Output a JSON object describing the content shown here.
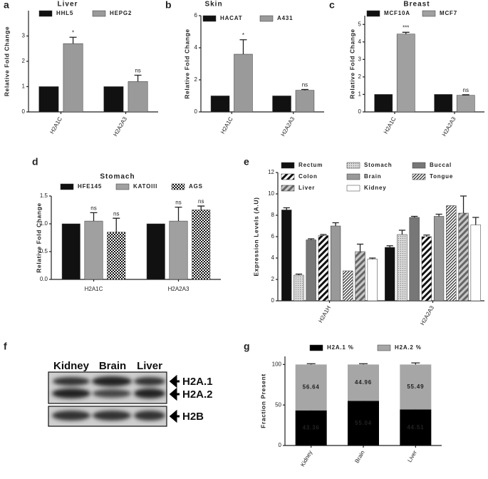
{
  "chart_data": [
    {
      "label": "a",
      "type": "bar",
      "title": "Liver",
      "ylabel": "Relative Fold Change",
      "categories": [
        "H2A1C",
        "H2A2A3"
      ],
      "ylim": [
        0,
        4
      ],
      "yticks": [
        0,
        1,
        2,
        3
      ],
      "series": [
        {
          "name": "HHL5",
          "color": "#111111",
          "values": [
            1,
            1
          ]
        },
        {
          "name": "HEPG2",
          "color": "#9a9a9a",
          "values": [
            2.7,
            1.2
          ],
          "errors": [
            0.25,
            0.25
          ],
          "annotations": [
            "*",
            "ns"
          ]
        }
      ]
    },
    {
      "label": "b",
      "type": "bar",
      "title": "Skin",
      "ylabel": "Relative Fold Change",
      "categories": [
        "H2A1C",
        "H2A2A3"
      ],
      "ylim": [
        0,
        6
      ],
      "yticks": [
        0,
        2,
        4,
        6
      ],
      "series": [
        {
          "name": "HACAT",
          "color": "#111111",
          "values": [
            1,
            1
          ]
        },
        {
          "name": "A431",
          "color": "#9a9a9a",
          "values": [
            3.6,
            1.35
          ],
          "errors": [
            0.9,
            0.05
          ],
          "annotations": [
            "*",
            "ns"
          ]
        }
      ]
    },
    {
      "label": "c",
      "type": "bar",
      "title": "Breast",
      "ylabel": "Relative Fold Change",
      "categories": [
        "H2A1C",
        "H2A2A3"
      ],
      "ylim": [
        0,
        5.5
      ],
      "yticks": [
        0,
        1,
        2,
        3,
        4,
        5
      ],
      "series": [
        {
          "name": "MCF10A",
          "color": "#111111",
          "values": [
            1,
            1
          ]
        },
        {
          "name": "MCF7",
          "color": "#a0a0a0",
          "values": [
            4.45,
            0.95
          ],
          "errors": [
            0.1,
            0.03
          ],
          "annotations": [
            "***",
            "ns"
          ]
        }
      ]
    },
    {
      "label": "d",
      "type": "bar",
      "title": "Stomach",
      "ylabel": "Relative Fold Change",
      "categories": [
        "H2A1C",
        "H2A2A3"
      ],
      "ylim": [
        0,
        1.5
      ],
      "yticks": [
        {
          "value": 0,
          "label": "0.0"
        },
        {
          "value": 0.5,
          "label": "0.5"
        },
        {
          "value": 1,
          "label": "1.0"
        },
        1.5
      ],
      "series": [
        {
          "name": "HFE145",
          "color": "#111111",
          "values": [
            1,
            1
          ]
        },
        {
          "name": "KATOIII",
          "color": "#a0a0a0",
          "values": [
            1.05,
            1.05
          ],
          "errors": [
            0.15,
            0.25
          ],
          "annotations": [
            "ns",
            "ns"
          ]
        },
        {
          "name": "AGS",
          "color": "#555555",
          "pattern": "checker",
          "values": [
            0.85,
            1.25
          ],
          "errors": [
            0.25,
            0.07
          ],
          "annotations": [
            "ns",
            "ns"
          ]
        }
      ]
    },
    {
      "label": "e",
      "type": "bar",
      "ylabel": "Expression Levels (A.U)",
      "categories": [
        "H2A1H",
        "H2A2A3"
      ],
      "ylim": [
        0,
        12
      ],
      "yticks": [
        0,
        2,
        4,
        6,
        8,
        10,
        12
      ],
      "series": [
        {
          "name": "Rectum",
          "color": "#111111",
          "values": [
            8.5,
            5
          ],
          "errors": [
            0.2,
            0.15
          ]
        },
        {
          "name": "Stomach",
          "color": "#d0d0d0",
          "pattern": "dots",
          "values": [
            2.4,
            6.2
          ],
          "errors": [
            0.1,
            0.4
          ]
        },
        {
          "name": "Buccal",
          "color": "#777777",
          "values": [
            5.7,
            7.8
          ],
          "errors": [
            0.1,
            0.1
          ]
        },
        {
          "name": "Colon",
          "color": "#111111",
          "pattern": "hatch",
          "values": [
            6.1,
            6
          ],
          "errors": [
            0.1,
            0.15
          ]
        },
        {
          "name": "Brain",
          "color": "#999999",
          "values": [
            7,
            7.9
          ],
          "errors": [
            0.3,
            0.2
          ]
        },
        {
          "name": "Tongue",
          "color": "#333333",
          "pattern": "stripes",
          "values": [
            2.8,
            8.9
          ]
        },
        {
          "name": "Liver",
          "color": "#888888",
          "pattern": "hatchgray",
          "values": [
            4.6,
            8.2
          ],
          "errors": [
            0.7,
            1.6
          ]
        },
        {
          "name": "Kidney",
          "color": "#ffffff",
          "values": [
            3.9,
            7.1
          ],
          "errors": [
            0.1,
            0.7
          ]
        }
      ]
    },
    {
      "label": "g",
      "type": "stacked_bar",
      "ylabel": "Fraction Present",
      "categories": [
        "Kidney",
        "Brain",
        "Liver"
      ],
      "ylim": [
        0,
        110
      ],
      "yticks": [
        0,
        50,
        100
      ],
      "series": [
        {
          "name": "H2A.1 %",
          "color": "#000000",
          "values": [
            43.36,
            55.04,
            44.51
          ],
          "errors": [
            2,
            2,
            2
          ]
        },
        {
          "name": "H2A.2 %",
          "color": "#a6a6a6",
          "values": [
            56.64,
            44.96,
            55.49
          ],
          "errors": [
            1,
            1,
            2
          ]
        }
      ]
    }
  ],
  "blot": {
    "label": "f",
    "lanes": [
      "Kidney",
      "Brain",
      "Liver"
    ],
    "bands": [
      "H2A.1",
      "H2A.2",
      "H2B"
    ]
  }
}
